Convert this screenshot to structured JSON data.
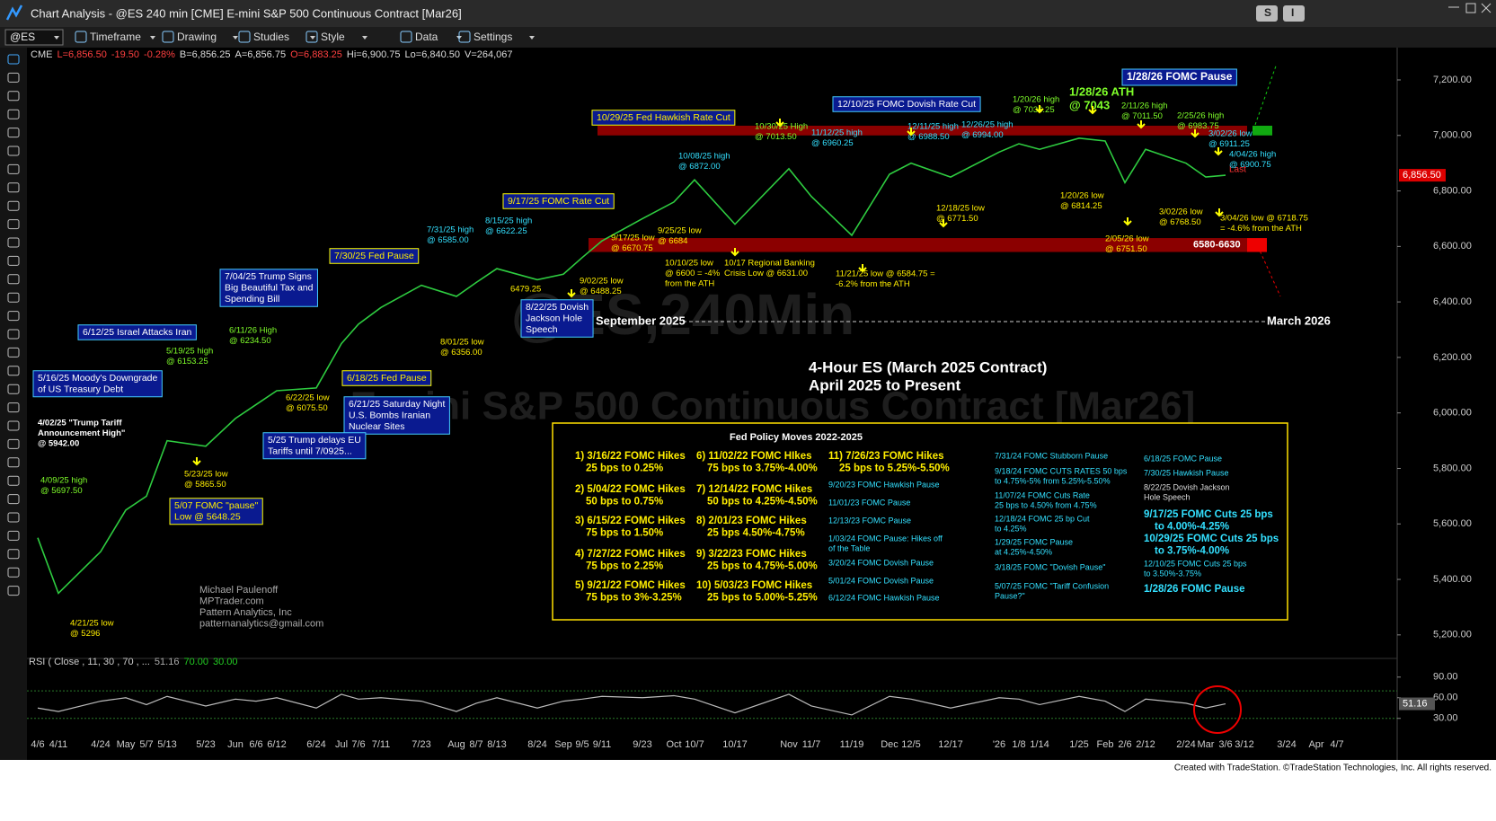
{
  "window": {
    "title": "Chart Analysis - @ES 240 min [CME] E-mini S&P 500 Continuous Contract [Mar26]",
    "buttons": [
      "S",
      "I"
    ]
  },
  "toolbar": {
    "symbol": "@ES",
    "items": [
      "Timeframe",
      "Drawing",
      "Studies",
      "Style",
      "Data",
      "Settings"
    ]
  },
  "quote": {
    "exchange": "CME",
    "parts": [
      "L=6,856.50",
      "-19.50",
      "-0.28%",
      "B=6,856.25",
      "A=6,856.75",
      "O=6,883.25",
      "Hi=6,900.75",
      "Lo=6,840.50",
      "V=264,067"
    ]
  },
  "chart_data": {
    "type": "line",
    "categories": [
      "4/6",
      "4/11",
      "4/24",
      "May",
      "5/7",
      "5/13",
      "5/23",
      "Jun",
      "6/6",
      "6/12",
      "6/24",
      "Jul",
      "7/6",
      "7/11",
      "7/23",
      "Aug",
      "8/7",
      "8/13",
      "8/24",
      "Sep",
      "9/5",
      "9/11",
      "9/23",
      "Oct",
      "10/7",
      "10/17",
      "Nov",
      "11/7",
      "11/19",
      "Dec",
      "12/5",
      "12/17",
      "'26",
      "1/8",
      "1/14",
      "1/25",
      "Feb",
      "2/6",
      "2/12",
      "2/24",
      "Mar",
      "3/6",
      "3/12",
      "3/24",
      "Apr",
      "4/7"
    ],
    "values": [
      5550,
      5350,
      5500,
      5650,
      5700,
      5900,
      5880,
      5980,
      6030,
      6080,
      6090,
      6250,
      6320,
      6380,
      6460,
      6420,
      6470,
      6520,
      6480,
      6500,
      6560,
      6620,
      6700,
      6760,
      6840,
      6680,
      6880,
      6780,
      6640,
      6860,
      6900,
      6850,
      6940,
      6970,
      6950,
      6990,
      6980,
      6830,
      6950,
      6900,
      6850,
      6856.5,
      null,
      null,
      null,
      null
    ],
    "color": "#2ecc40",
    "ylim": [
      5125,
      7310
    ],
    "yticks": [
      {
        "value": 5200,
        "label": "5,200.00"
      },
      {
        "value": 5400,
        "label": "5,400.00"
      },
      {
        "value": 5600,
        "label": "5,600.00"
      },
      {
        "value": 5800,
        "label": "5,800.00"
      },
      {
        "value": 6000,
        "label": "6,000.00"
      },
      {
        "value": 6200,
        "label": "6,200.00"
      },
      {
        "value": 6400,
        "label": "6,400.00"
      },
      {
        "value": 6600,
        "label": "6,600.00"
      },
      {
        "value": 6800,
        "label": "6,800.00"
      },
      {
        "value": 7000,
        "label": "7,000.00"
      },
      {
        "value": 7200,
        "label": "7,200.00"
      }
    ],
    "last": {
      "value": 6856.5,
      "label": "6,856.50",
      "tag": "Last"
    },
    "bands": [
      {
        "range": [
          6580,
          6630
        ],
        "label": "6580-6630"
      },
      {
        "range": [
          7000,
          7035
        ]
      }
    ],
    "watermark": [
      "@ES,240Min",
      "E-mini S&P 500 Continuous Contract [Mar26]"
    ],
    "subtitle": [
      "4-Hour ES (March 2025 Contract)",
      "April 2025 to Present"
    ],
    "period_labels": [
      "September 2025",
      "March 2026"
    ],
    "credits": [
      "Michael Paulenoff",
      "MPTrader.com",
      "Pattern Analytics, Inc",
      "patternanalytics@gmail.com"
    ],
    "annotations": [
      [
        "4/02/25 \"Trump Tariff",
        "Announcement High\"",
        "@ 5942.00"
      ],
      [
        "4/09/25 high",
        "@ 5697.50"
      ],
      [
        "4/21/25 low",
        "@ 5296"
      ],
      [
        "5/16/25 Moody's Downgrade",
        "of US Treasury Debt"
      ],
      [
        "5/19/25 high",
        "@ 6153.25"
      ],
      [
        "5/23/25 low",
        "@ 5865.50"
      ],
      [
        "5/07 FOMC \"pause\"",
        "Low @ 5648.25"
      ],
      [
        "6/12/25 Israel Attacks Iran"
      ],
      [
        "6/11/26 High",
        "@ 6234.50"
      ],
      [
        "6/18/25 Fed Pause"
      ],
      [
        "6/22/25 low",
        "@ 6075.50"
      ],
      [
        "6/21/25 Saturday Night",
        "U.S. Bombs Iranian",
        "Nuclear Sites"
      ],
      [
        "5/25 Trump delays EU",
        "Tariffs until 7/0925..."
      ],
      [
        "7/04/25 Trump Signs",
        "Big Beautiful Tax and",
        "Spending Bill"
      ],
      [
        "7/30/25 Fed Pause"
      ],
      [
        "7/31/25 high",
        "@ 6585.00"
      ],
      [
        "8/01/25 low",
        "@ 6356.00"
      ],
      [
        "8/15/25 high",
        "@ 6622.25"
      ],
      [
        "6479.25"
      ],
      [
        "8/22/25 Dovish",
        "Jackson Hole",
        "Speech"
      ],
      [
        "9/02/25 low",
        "@ 6488.25"
      ],
      [
        "9/17/25 FOMC Rate Cut"
      ],
      [
        "9/17/25 low",
        "@ 6670.75"
      ],
      [
        "9/25/25 low",
        "@ 6684"
      ],
      [
        "10/08/25 high",
        "@ 6872.00"
      ],
      [
        "10/10/25 low",
        "@ 6600 = -4%",
        "from the ATH"
      ],
      [
        "10/17 Regional Banking",
        "Crisis Low @ 6631.00"
      ],
      [
        "10/29/25 Fed Hawkish Rate Cut"
      ],
      [
        "10/30/25 High",
        "@ 7013.50"
      ],
      [
        "11/12/25 high",
        "@ 6960.25"
      ],
      [
        "11/21/25 low @ 6584.75 =",
        "-6.2% from the ATH"
      ],
      [
        "12/10/25 FOMC Dovish Rate Cut"
      ],
      [
        "12/11/25 high",
        "@ 6988.50"
      ],
      [
        "12/18/25 low",
        "@ 6771.50"
      ],
      [
        "12/26/25 high",
        "@ 6994.00"
      ],
      [
        "1/20/26 high",
        "@ 7036.25"
      ],
      [
        "1/28/26 ATH",
        "@ 7043"
      ],
      [
        "1/28/26 FOMC Pause"
      ],
      [
        "1/20/26 low",
        "@ 6814.25"
      ],
      [
        "2/11/26 high",
        "@ 7011.50"
      ],
      [
        "2/05/26 low",
        "@ 6751.50"
      ],
      [
        "2/25/26 high",
        "@ 6983.75"
      ],
      [
        "3/02/26 low",
        "@ 6768.50"
      ],
      [
        "3/02/26 low",
        "@ 6911.25"
      ],
      [
        "4/04/26 high",
        "@ 6900.75"
      ],
      [
        "3/04/26 low @ 6718.75",
        "= -4.6% from the ATH"
      ]
    ]
  },
  "fed_box": {
    "title": "Fed Policy Moves 2022-2025",
    "columns": [
      [
        [
          "1) 3/16/22 FOMC Hikes",
          "25 bps to 0.25%"
        ],
        [
          "2) 5/04/22 FOMC Hikes",
          "50 bps to 0.75%"
        ],
        [
          "3) 6/15/22 FOMC Hikes",
          "75 bps to 1.50%"
        ],
        [
          "4) 7/27/22 FOMC Hikes",
          "75 bps to 2.25%"
        ],
        [
          "5) 9/21/22 FOMC Hikes",
          "75 bps to 3%-3.25%"
        ]
      ],
      [
        [
          "6) 11/02/22 FOMC HIkes",
          "75 bps to 3.75%-4.00%"
        ],
        [
          "7) 12/14/22 FOMC Hikes",
          "50 bps to 4.25%-4.50%"
        ],
        [
          "8) 2/01/23 FOMC Hikes",
          "25 bps 4.50%-4.75%"
        ],
        [
          "9) 3/22/23 FOMC Hikes",
          "25 bps to 4.75%-5.00%"
        ],
        [
          "10) 5/03/23 FOMC Hikes",
          "25 bps to 5.00%-5.25%"
        ]
      ],
      [
        [
          "11) 7/26/23 FOMC Hikes",
          "25 bps to 5.25%-5.50%"
        ],
        [
          "9/20/23 FOMC Hawkish Pause"
        ],
        [
          "11/01/23 FOMC Pause"
        ],
        [
          "12/13/23 FOMC Pause"
        ],
        [
          "1/03/24 FOMC Pause: Hikes off",
          "of the Table"
        ],
        [
          "3/20/24 FOMC Dovish Pause"
        ],
        [
          "5/01/24 FOMC Dovish Pause"
        ],
        [
          "6/12/24 FOMC Hawkish Pause"
        ]
      ],
      [
        [
          "7/31/24 FOMC Stubborn Pause"
        ],
        [
          "9/18/24 FOMC CUTS RATES 50 bps",
          "to 4.75%-5% from 5.25%-5.50%"
        ],
        [
          "11/07/24 FOMC Cuts Rate",
          "25 bps to 4.50% from 4.75%"
        ],
        [
          "12/18/24 FOMC 25 bp Cut",
          "to 4.25%"
        ],
        [
          "1/29/25 FOMC Pause",
          "at 4.25%-4.50%"
        ],
        [
          "3/18/25 FOMC \"Dovish Pause\""
        ],
        [
          "5/07/25 FOMC \"Tariff Confusion",
          "Pause?\""
        ]
      ],
      [
        [
          "6/18/25 FOMC Pause"
        ],
        [
          "7/30/25 Hawkish Pause"
        ],
        [
          "8/22/25 Dovish Jackson",
          "Hole Speech"
        ],
        [
          "9/17/25 FOMC Cuts 25 bps",
          "to 4.00%-4.25%"
        ],
        [
          "10/29/25 FOMC Cuts 25 bps",
          "to 3.75%-4.00%"
        ],
        [
          "12/10/25 FOMC Cuts 25 bps",
          "to 3.50%-3.75%"
        ],
        [
          "1/28/26 FOMC Pause"
        ]
      ]
    ]
  },
  "rsi": {
    "title": "RSI ( Close , 11, 30 , 70 , ...",
    "header_values": [
      "51.16",
      "70.00",
      "30.00"
    ],
    "values": [
      45,
      40,
      55,
      60,
      50,
      62,
      48,
      58,
      55,
      60,
      45,
      65,
      58,
      60,
      55,
      40,
      52,
      60,
      45,
      55,
      58,
      62,
      60,
      63,
      58,
      38,
      65,
      48,
      35,
      62,
      58,
      45,
      60,
      58,
      50,
      62,
      55,
      40,
      58,
      52,
      45,
      51.16,
      null,
      null,
      null,
      null
    ],
    "ylim": [
      14,
      108
    ],
    "yticks": [
      {
        "value": 90,
        "label": "90.00"
      },
      {
        "value": 60,
        "label": "60.00"
      },
      {
        "value": 30,
        "label": "30.00"
      }
    ],
    "levels": [
      70,
      30
    ],
    "last_label": "51.16"
  },
  "footer": "Created with TradeStation. ©TradeStation Technologies, Inc. All rights reserved."
}
